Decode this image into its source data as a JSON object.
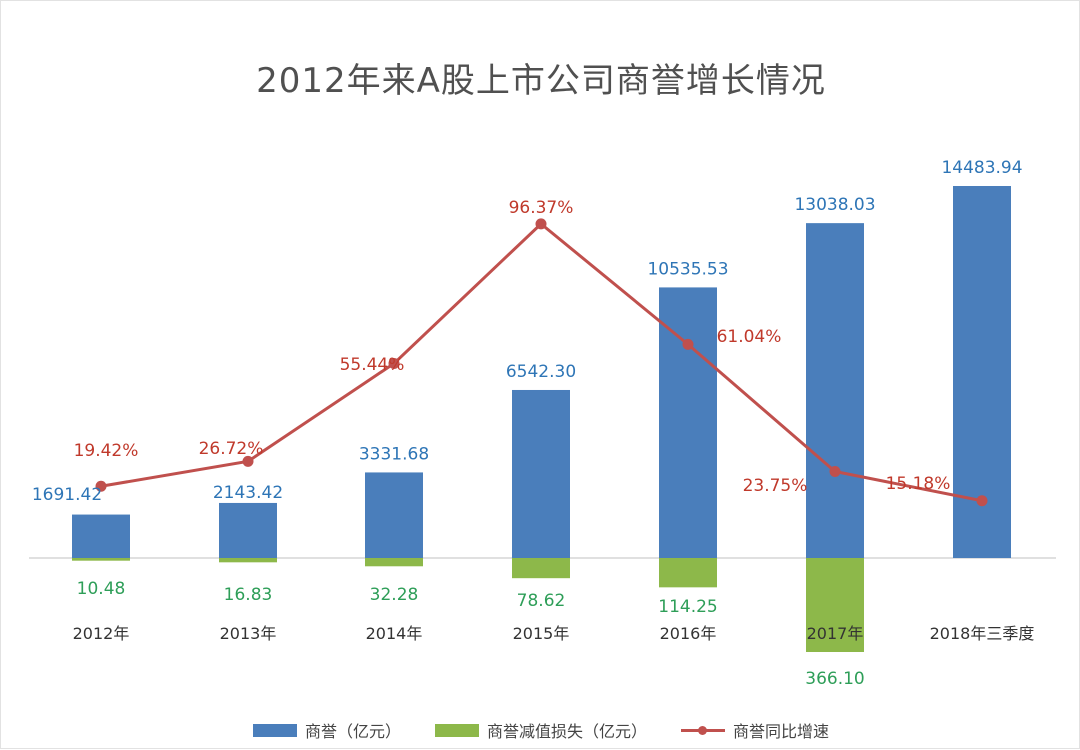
{
  "chart_data": {
    "type": "bar",
    "title": "2012年来A股上市公司商誉增长情况",
    "categories": [
      "2012年",
      "2013年",
      "2014年",
      "2015年",
      "2016年",
      "2017年",
      "2018年三季度"
    ],
    "series": [
      {
        "name": "商誉（亿元）",
        "kind": "bar",
        "color": "#4a7ebb",
        "values": [
          1691.42,
          2143.42,
          3331.68,
          6542.3,
          10535.53,
          13038.03,
          14483.94
        ],
        "labels": [
          "1691.42",
          "2143.42",
          "3331.68",
          "6542.30",
          "10535.53",
          "13038.03",
          "14483.94"
        ],
        "label_color": "#2e75b6"
      },
      {
        "name": "商誉减值损失（亿元）",
        "kind": "bar-negative",
        "color": "#8db84a",
        "values": [
          10.48,
          16.83,
          32.28,
          78.62,
          114.25,
          366.1,
          null
        ],
        "labels": [
          "10.48",
          "16.83",
          "32.28",
          "78.62",
          "114.25",
          "366.10",
          ""
        ],
        "label_color": "#2e9e58"
      },
      {
        "name": "商誉同比增速",
        "kind": "line",
        "color": "#c0504d",
        "values": [
          19.42,
          26.72,
          55.44,
          96.37,
          61.04,
          23.75,
          15.18
        ],
        "labels": [
          "19.42%",
          "26.72%",
          "55.44%",
          "96.37%",
          "61.04%",
          "23.75%",
          "15.18%"
        ],
        "label_color": "#c0392b"
      }
    ],
    "bar_axis_max": 15000,
    "line_axis_max": 120,
    "line_axis_min": 0,
    "legend_position": "bottom"
  }
}
